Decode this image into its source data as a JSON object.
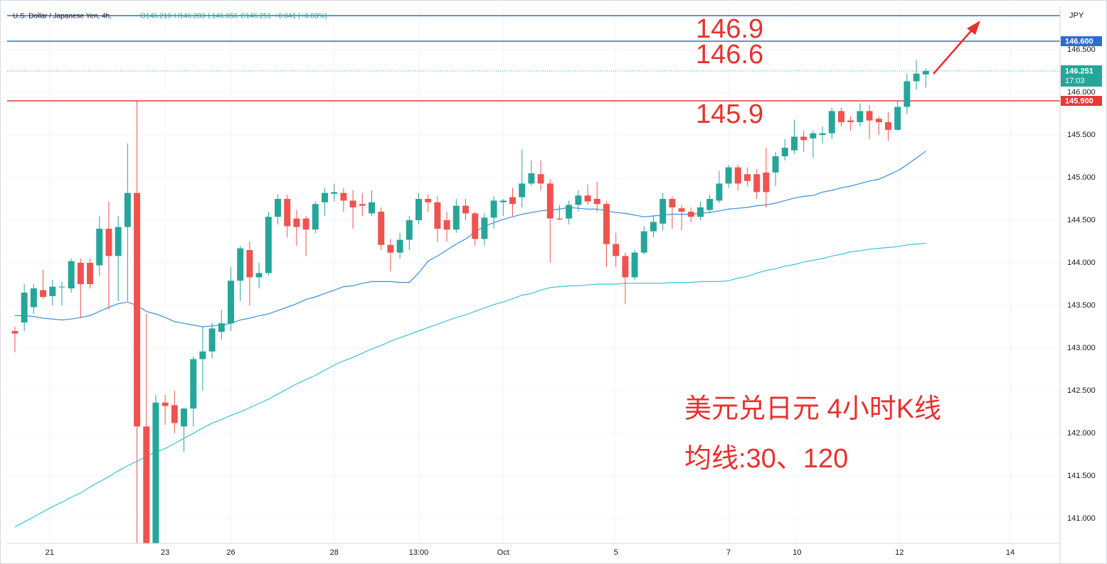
{
  "chart_data": {
    "type": "candlestick",
    "title": "U.S. Dollar / Japanese Yen, 4h,",
    "ohlc_labels": [
      "O146.210",
      "H146.283",
      "L146.056",
      "C146.251",
      "+0.041 (+0.03%)"
    ],
    "currency": "JPY",
    "up_color": "#26a69a",
    "down_color": "#ef5350",
    "open": [
      143.2,
      143.3,
      143.48,
      143.68,
      143.61,
      143.72,
      143.7,
      144.0,
      144.0,
      143.97,
      144.4,
      144.08,
      144.42,
      144.82,
      142.08,
      140.71,
      142.36,
      142.33,
      142.08,
      142.29,
      142.87,
      142.96,
      143.19,
      143.29,
      143.79,
      144.15,
      143.83,
      143.88,
      144.54,
      144.75,
      144.52,
      144.52,
      144.39,
      144.71,
      144.81,
      144.82,
      144.73,
      144.69,
      144.58,
      144.6,
      144.21,
      144.12,
      144.27,
      144.5,
      144.75,
      144.71,
      144.5,
      144.39,
      144.67,
      144.58,
      144.28,
      144.53,
      144.71,
      144.77,
      144.77,
      144.93,
      145.04,
      144.93,
      144.52,
      144.52,
      144.68,
      144.79,
      144.75,
      144.69,
      144.22,
      144.08,
      143.83,
      144.12,
      144.37,
      144.46,
      144.75,
      144.64,
      144.6,
      144.54,
      144.62,
      144.73,
      144.93,
      145.12,
      145.04,
      145.04,
      145.06,
      145.06,
      145.25,
      145.32,
      145.48,
      145.46,
      145.5,
      145.52,
      145.78,
      145.67,
      145.65,
      145.78,
      145.69,
      145.65,
      145.56,
      145.83,
      146.13,
      146.21
    ],
    "high": [
      143.25,
      143.75,
      143.75,
      143.92,
      143.8,
      143.78,
      144.05,
      144.05,
      144.05,
      144.55,
      144.72,
      144.55,
      145.4,
      145.9,
      143.4,
      142.45,
      142.45,
      142.5,
      142.3,
      142.9,
      143.25,
      143.3,
      143.45,
      143.95,
      144.2,
      144.25,
      144.0,
      144.6,
      144.8,
      144.8,
      144.62,
      144.55,
      144.72,
      144.88,
      144.93,
      144.88,
      144.85,
      144.82,
      144.85,
      144.65,
      144.28,
      144.35,
      144.55,
      144.82,
      144.8,
      144.78,
      144.6,
      144.75,
      144.75,
      144.6,
      144.58,
      144.78,
      144.75,
      144.88,
      145.33,
      145.2,
      145.2,
      144.98,
      144.68,
      144.73,
      144.85,
      144.92,
      144.95,
      144.72,
      144.35,
      144.12,
      144.15,
      144.43,
      144.55,
      144.82,
      144.78,
      144.68,
      144.65,
      144.72,
      144.8,
      145.08,
      145.15,
      145.15,
      145.12,
      145.1,
      145.35,
      145.3,
      145.45,
      145.68,
      145.55,
      145.55,
      145.6,
      145.82,
      145.82,
      145.72,
      145.87,
      145.85,
      145.72,
      145.77,
      145.9,
      146.22,
      146.38,
      146.283
    ],
    "low": [
      142.95,
      143.2,
      143.4,
      143.58,
      143.5,
      143.5,
      143.65,
      143.35,
      143.7,
      143.85,
      143.45,
      143.55,
      143.55,
      140.7,
      140.71,
      140.71,
      142.1,
      142.0,
      141.78,
      142.08,
      142.5,
      142.88,
      143.1,
      143.2,
      143.55,
      143.5,
      143.7,
      143.85,
      144.45,
      144.3,
      144.2,
      144.08,
      144.35,
      144.55,
      144.72,
      144.6,
      144.4,
      144.55,
      144.55,
      144.15,
      143.9,
      144.05,
      144.15,
      144.45,
      144.6,
      144.25,
      144.25,
      144.35,
      144.5,
      144.2,
      144.2,
      144.4,
      144.55,
      144.55,
      144.65,
      144.9,
      144.85,
      144.0,
      144.5,
      144.45,
      144.6,
      144.68,
      144.6,
      143.95,
      143.95,
      143.52,
      143.8,
      144.1,
      144.3,
      144.38,
      144.4,
      144.38,
      144.48,
      144.5,
      144.58,
      144.7,
      144.88,
      144.85,
      144.9,
      144.75,
      144.65,
      144.9,
      145.2,
      145.28,
      145.3,
      145.23,
      145.4,
      145.45,
      145.6,
      145.55,
      145.6,
      145.45,
      145.5,
      145.43,
      145.55,
      145.75,
      146.03,
      146.056
    ],
    "close": [
      143.17,
      143.65,
      143.7,
      143.6,
      143.72,
      143.72,
      144.02,
      143.75,
      143.75,
      144.4,
      144.08,
      144.42,
      144.82,
      142.08,
      140.71,
      142.36,
      142.32,
      142.12,
      142.29,
      142.87,
      142.96,
      143.23,
      143.29,
      143.79,
      144.17,
      143.83,
      143.88,
      144.54,
      144.75,
      144.43,
      144.42,
      144.39,
      144.69,
      144.82,
      144.83,
      144.73,
      144.65,
      144.67,
      144.71,
      144.21,
      144.12,
      144.27,
      144.5,
      144.75,
      144.71,
      144.4,
      144.39,
      144.67,
      144.58,
      144.28,
      144.53,
      144.73,
      144.73,
      144.69,
      144.93,
      145.05,
      144.93,
      144.52,
      144.51,
      144.68,
      144.79,
      144.72,
      144.69,
      144.22,
      144.08,
      143.83,
      144.12,
      144.37,
      144.48,
      144.75,
      144.65,
      144.6,
      144.54,
      144.65,
      144.75,
      144.93,
      145.12,
      144.93,
      144.96,
      144.83,
      144.83,
      145.25,
      145.35,
      145.48,
      145.44,
      145.52,
      145.52,
      145.78,
      145.65,
      145.65,
      145.78,
      145.67,
      145.65,
      145.56,
      145.83,
      146.13,
      146.22,
      146.251
    ],
    "series": [
      {
        "color": "#3b8ede",
        "values": [
          143.38,
          143.38,
          143.37,
          143.35,
          143.34,
          143.33,
          143.34,
          143.36,
          143.38,
          143.43,
          143.48,
          143.52,
          143.54,
          143.5,
          143.43,
          143.4,
          143.36,
          143.31,
          143.29,
          143.27,
          143.25,
          143.26,
          143.27,
          143.29,
          143.33,
          143.35,
          143.38,
          143.4,
          143.44,
          143.48,
          143.52,
          143.57,
          143.6,
          143.64,
          143.68,
          143.72,
          143.73,
          143.76,
          143.78,
          143.78,
          143.78,
          143.77,
          143.77,
          143.88,
          144.02,
          144.08,
          144.15,
          144.22,
          144.28,
          144.36,
          144.43,
          144.47,
          144.51,
          144.54,
          144.57,
          144.59,
          144.61,
          144.62,
          144.63,
          144.65,
          144.64,
          144.63,
          144.63,
          144.61,
          144.59,
          144.58,
          144.56,
          144.54,
          144.55,
          144.56,
          144.57,
          144.57,
          144.57,
          144.58,
          144.59,
          144.61,
          144.63,
          144.64,
          144.65,
          144.67,
          144.68,
          144.7,
          144.73,
          144.76,
          144.78,
          144.79,
          144.83,
          144.85,
          144.88,
          144.9,
          144.93,
          144.96,
          144.98,
          145.03,
          145.08,
          145.15,
          145.23,
          145.31
        ]
      },
      {
        "color": "#35c4d8",
        "values": [
          140.9,
          140.96,
          141.02,
          141.08,
          141.14,
          141.19,
          141.25,
          141.3,
          141.37,
          141.43,
          141.49,
          141.56,
          141.62,
          141.67,
          141.73,
          141.78,
          141.82,
          141.88,
          141.94,
          142.0,
          142.06,
          142.12,
          142.16,
          142.21,
          142.25,
          142.3,
          142.35,
          142.4,
          142.46,
          142.52,
          142.58,
          142.63,
          142.68,
          142.74,
          142.8,
          142.85,
          142.89,
          142.94,
          142.99,
          143.03,
          143.08,
          143.12,
          143.16,
          143.2,
          143.24,
          143.28,
          143.32,
          143.36,
          143.39,
          143.43,
          143.47,
          143.51,
          143.54,
          143.58,
          143.62,
          143.64,
          143.68,
          143.71,
          143.72,
          143.73,
          143.73,
          143.74,
          143.75,
          143.75,
          143.75,
          143.76,
          143.76,
          143.76,
          143.76,
          143.76,
          143.77,
          143.77,
          143.77,
          143.78,
          143.78,
          143.78,
          143.79,
          143.82,
          143.84,
          143.88,
          143.91,
          143.93,
          143.96,
          143.98,
          144.01,
          144.03,
          144.05,
          144.08,
          144.1,
          144.13,
          144.14,
          144.16,
          144.17,
          144.18,
          144.19,
          144.21,
          144.22,
          144.23
        ]
      }
    ],
    "levels": [
      {
        "value": 146.9,
        "annotation": "146.9",
        "color": "#2f6bd0"
      },
      {
        "value": 146.6,
        "annotation": "146.6",
        "label": "146.600",
        "color": "#2f6bd0"
      },
      {
        "value": 145.9,
        "annotation": "145.9",
        "label": "145.900",
        "color": "#e53935"
      }
    ],
    "last_price": 146.251,
    "countdown": "17:03",
    "notes": [
      "美元兑日元 4小时K线",
      "均线:30、120"
    ],
    "ylim": [
      140.708,
      147.017
    ],
    "yticks": [
      {
        "value": 141.0,
        "label": "141.000"
      },
      {
        "value": 141.5,
        "label": "141.500"
      },
      {
        "value": 142.0,
        "label": "142.000"
      },
      {
        "value": 142.5,
        "label": "142.500"
      },
      {
        "value": 143.0,
        "label": "143.000"
      },
      {
        "value": 143.5,
        "label": "143.500"
      },
      {
        "value": 144.0,
        "label": "144.000"
      },
      {
        "value": 144.5,
        "label": "144.500"
      },
      {
        "value": 145.0,
        "label": "145.000"
      },
      {
        "value": 145.5,
        "label": "145.500"
      },
      {
        "value": 146.0,
        "label": "146.000"
      },
      {
        "value": 146.5,
        "label": "146.500"
      }
    ],
    "xlim": [
      -0.83,
      111.3
    ],
    "xticks": [
      {
        "value": 3.7,
        "label": "21"
      },
      {
        "value": 16,
        "label": "23"
      },
      {
        "value": 23,
        "label": "26"
      },
      {
        "value": 34,
        "label": "28"
      },
      {
        "value": 43,
        "label": "13:00"
      },
      {
        "value": 52,
        "label": "Oct"
      },
      {
        "value": 64,
        "label": "5"
      },
      {
        "value": 76,
        "label": "7"
      },
      {
        "value": 83.3,
        "label": "10"
      },
      {
        "value": 94.2,
        "label": "12"
      },
      {
        "value": 106,
        "label": "14"
      }
    ],
    "grid": true
  }
}
